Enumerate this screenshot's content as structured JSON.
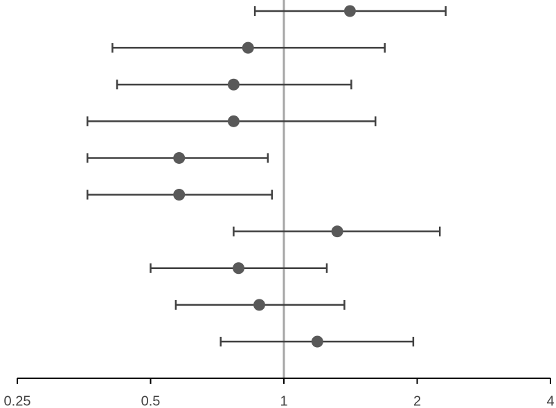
{
  "chart_data": {
    "type": "forest",
    "xscale": "log",
    "xlim": [
      0.25,
      4
    ],
    "xticks": [
      0.25,
      0.5,
      1,
      2,
      4
    ],
    "reference_line": 1,
    "reference_color": "#a6a6a6",
    "color": "#595959",
    "values": [
      1.41,
      0.83,
      0.77,
      0.77,
      0.58,
      0.58,
      1.32,
      0.79,
      0.88,
      1.19
    ],
    "lower": [
      0.86,
      0.41,
      0.42,
      0.36,
      0.36,
      0.36,
      0.77,
      0.5,
      0.57,
      0.72
    ],
    "upper": [
      2.32,
      1.69,
      1.42,
      1.61,
      0.92,
      0.94,
      2.25,
      1.25,
      1.37,
      1.96
    ]
  }
}
